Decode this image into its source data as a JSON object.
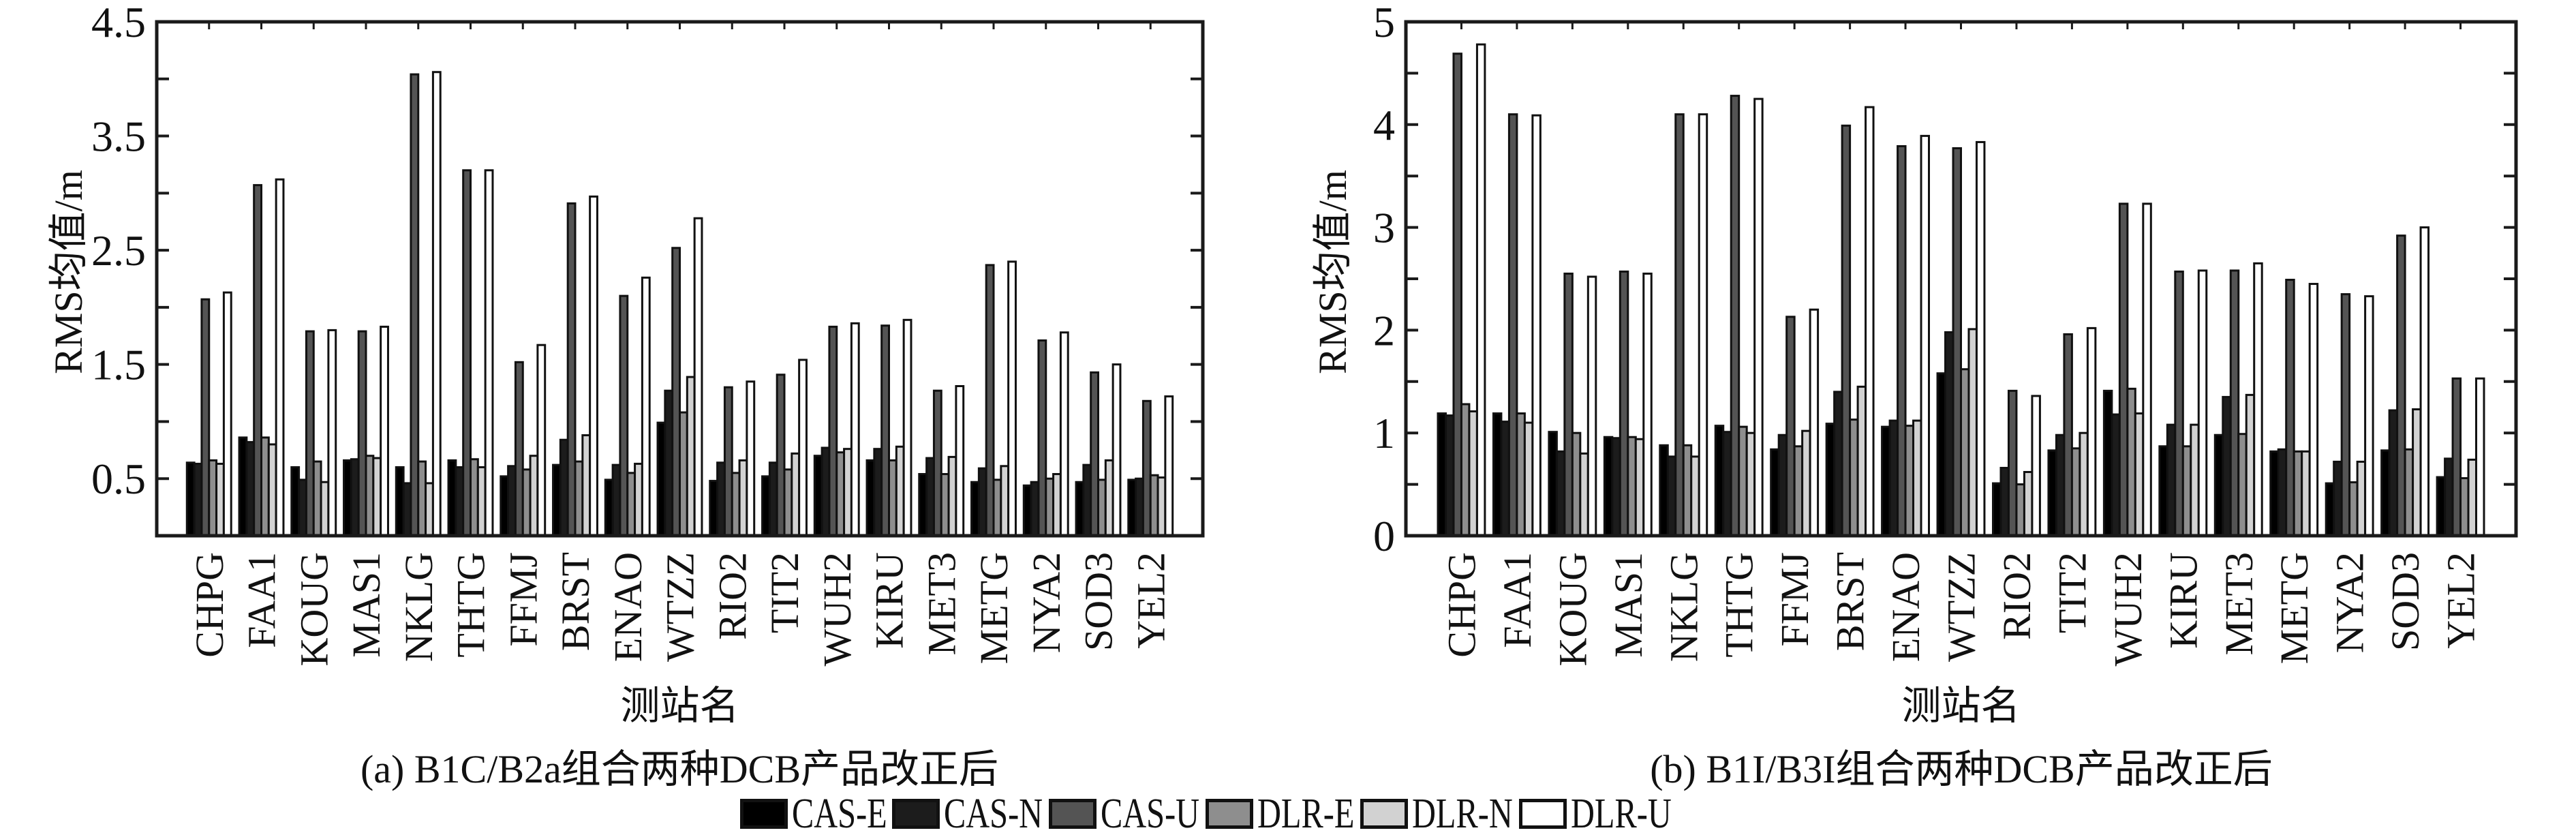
{
  "legend": [
    {
      "name": "CAS-E",
      "color": "#000000"
    },
    {
      "name": "CAS-N",
      "color": "#1c1c1c"
    },
    {
      "name": "CAS-U",
      "color": "#545454"
    },
    {
      "name": "DLR-E",
      "color": "#8e8e8e"
    },
    {
      "name": "DLR-N",
      "color": "#d2d2d2"
    },
    {
      "name": "DLR-U",
      "color": "#ffffff"
    }
  ],
  "chart_data": [
    {
      "type": "bar",
      "title": "(a) B1C/B2a组合两种DCB产品改正后",
      "xlabel": "测站名",
      "ylabel": "RMS均值/m",
      "ylim": [
        0,
        4.5
      ],
      "yticks": [
        0.5,
        1,
        1.5,
        2,
        2.5,
        3,
        3.5,
        4,
        4.5
      ],
      "ytick_labels": [
        "0.5",
        "",
        "1.5",
        "",
        "2.5",
        "",
        "3.5",
        "",
        "4.5"
      ],
      "categories": [
        "CHPG",
        "FAA1",
        "KOUG",
        "MAS1",
        "NKLG",
        "THTG",
        "FFMJ",
        "BRST",
        "ENAO",
        "WTZZ",
        "RIO2",
        "TIT2",
        "WUH2",
        "KIRU",
        "MET3",
        "METG",
        "NYA2",
        "SOD3",
        "YEL2"
      ],
      "series": [
        {
          "name": "CAS-E",
          "values": [
            0.64,
            0.86,
            0.6,
            0.66,
            0.6,
            0.66,
            0.52,
            0.62,
            0.49,
            0.99,
            0.48,
            0.52,
            0.7,
            0.66,
            0.54,
            0.47,
            0.44,
            0.47,
            0.49
          ]
        },
        {
          "name": "CAS-N",
          "values": [
            0.63,
            0.82,
            0.49,
            0.67,
            0.46,
            0.6,
            0.61,
            0.84,
            0.62,
            1.27,
            0.64,
            0.64,
            0.77,
            0.76,
            0.68,
            0.59,
            0.47,
            0.62,
            0.5
          ]
        },
        {
          "name": "CAS-U",
          "values": [
            2.07,
            3.07,
            1.79,
            1.79,
            4.04,
            3.2,
            1.52,
            2.91,
            2.1,
            2.52,
            1.3,
            1.41,
            1.83,
            1.84,
            1.27,
            2.37,
            1.71,
            1.43,
            1.18
          ]
        },
        {
          "name": "DLR-E",
          "values": [
            0.66,
            0.86,
            0.65,
            0.7,
            0.65,
            0.67,
            0.58,
            0.65,
            0.55,
            1.08,
            0.55,
            0.58,
            0.73,
            0.66,
            0.54,
            0.49,
            0.5,
            0.49,
            0.53
          ]
        },
        {
          "name": "DLR-N",
          "values": [
            0.63,
            0.8,
            0.47,
            0.68,
            0.46,
            0.6,
            0.7,
            0.88,
            0.63,
            1.39,
            0.66,
            0.72,
            0.76,
            0.78,
            0.69,
            0.61,
            0.54,
            0.66,
            0.51
          ]
        },
        {
          "name": "DLR-U",
          "values": [
            2.13,
            3.12,
            1.8,
            1.83,
            4.06,
            3.2,
            1.67,
            2.97,
            2.26,
            2.78,
            1.35,
            1.54,
            1.86,
            1.89,
            1.31,
            2.4,
            1.78,
            1.5,
            1.22
          ]
        }
      ]
    },
    {
      "type": "bar",
      "title": "(b) B1I/B3I组合两种DCB产品改正后",
      "xlabel": "测站名",
      "ylabel": "RMS均值/m",
      "ylim": [
        0,
        5
      ],
      "yticks": [
        0,
        0.5,
        1,
        1.5,
        2,
        2.5,
        3,
        3.5,
        4,
        4.5,
        5
      ],
      "ytick_labels": [
        "0",
        "",
        "1",
        "",
        "2",
        "",
        "3",
        "",
        "4",
        "",
        "5"
      ],
      "categories": [
        "CHPG",
        "FAA1",
        "KOUG",
        "MAS1",
        "NKLG",
        "THTG",
        "FFMJ",
        "BRST",
        "ENAO",
        "WTZZ",
        "RIO2",
        "TIT2",
        "WUH2",
        "KIRU",
        "MET3",
        "METG",
        "NYA2",
        "SOD3",
        "YEL2"
      ],
      "series": [
        {
          "name": "CAS-E",
          "values": [
            1.19,
            1.19,
            1.01,
            0.96,
            0.88,
            1.07,
            0.84,
            1.09,
            1.06,
            1.58,
            0.51,
            0.83,
            1.41,
            0.87,
            0.98,
            0.82,
            0.51,
            0.83,
            0.57
          ]
        },
        {
          "name": "CAS-N",
          "values": [
            1.17,
            1.11,
            0.82,
            0.95,
            0.77,
            1.01,
            0.98,
            1.4,
            1.12,
            1.98,
            0.66,
            0.98,
            1.18,
            1.08,
            1.35,
            0.84,
            0.72,
            1.22,
            0.75
          ]
        },
        {
          "name": "CAS-U",
          "values": [
            4.69,
            4.1,
            2.55,
            2.57,
            4.1,
            4.28,
            2.13,
            3.99,
            3.79,
            3.77,
            1.41,
            1.96,
            3.23,
            2.57,
            2.58,
            2.49,
            2.35,
            2.92,
            1.53
          ]
        },
        {
          "name": "DLR-E",
          "values": [
            1.28,
            1.19,
            1.0,
            0.96,
            0.88,
            1.06,
            0.87,
            1.13,
            1.07,
            1.62,
            0.5,
            0.85,
            1.43,
            0.87,
            0.99,
            0.82,
            0.52,
            0.84,
            0.56
          ]
        },
        {
          "name": "DLR-N",
          "values": [
            1.21,
            1.1,
            0.8,
            0.94,
            0.77,
            1.0,
            1.02,
            1.45,
            1.12,
            2.01,
            0.62,
            1.0,
            1.19,
            1.08,
            1.37,
            0.82,
            0.72,
            1.23,
            0.74
          ]
        },
        {
          "name": "DLR-U",
          "values": [
            4.78,
            4.09,
            2.52,
            2.55,
            4.1,
            4.25,
            2.2,
            4.17,
            3.89,
            3.83,
            1.36,
            2.02,
            3.23,
            2.58,
            2.65,
            2.45,
            2.33,
            3.0,
            1.53
          ]
        }
      ]
    }
  ]
}
